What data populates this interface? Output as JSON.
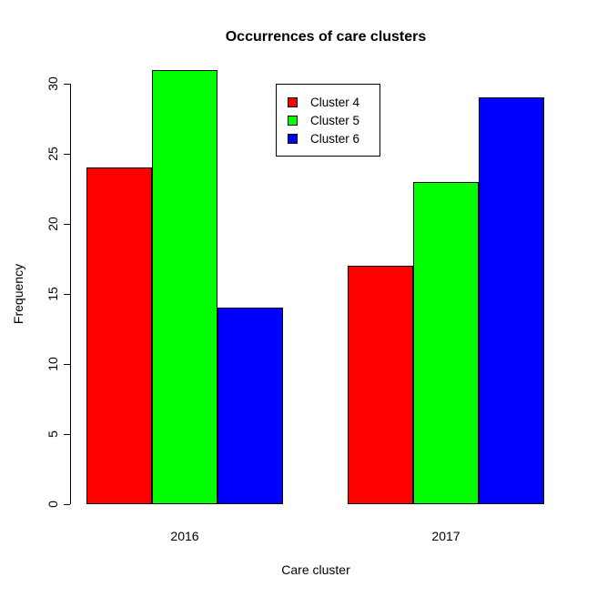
{
  "chart_data": {
    "type": "bar",
    "title": "Occurrences of care clusters",
    "xlabel": "Care cluster",
    "ylabel": "Frequency",
    "categories": [
      "2016",
      "2017"
    ],
    "series": [
      {
        "name": "Cluster 4",
        "color": "#FF0000",
        "values": [
          24,
          17
        ]
      },
      {
        "name": "Cluster 5",
        "color": "#00FF00",
        "values": [
          31,
          23
        ]
      },
      {
        "name": "Cluster 6",
        "color": "#0000FF",
        "values": [
          14,
          29
        ]
      }
    ],
    "ylim": [
      0,
      30
    ],
    "yticks": [
      0,
      5,
      10,
      15,
      20,
      25,
      30
    ],
    "legend_position": "top-center",
    "grid": false,
    "bar_border_color": "#000000",
    "background": "#FFFFFF"
  }
}
